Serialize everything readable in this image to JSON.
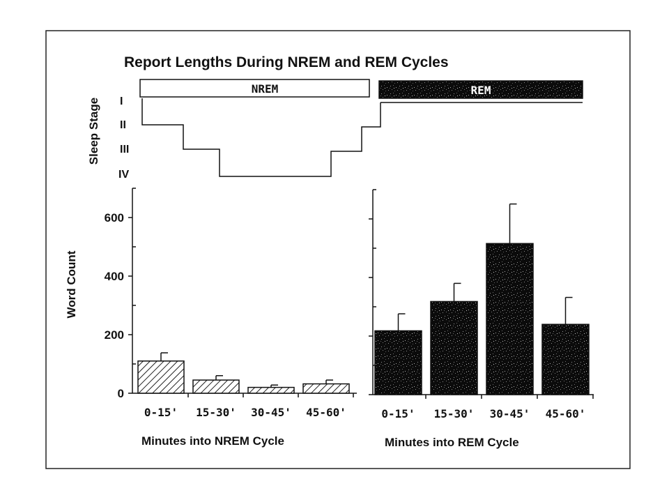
{
  "chart_data": {
    "type": "bar",
    "title": "Report Lengths During NREM and REM Cycles",
    "ylabel": "Word Count",
    "ylim": [
      0,
      700
    ],
    "yticks": [
      0,
      200,
      400,
      600
    ],
    "sleep_stage_panel": {
      "label": "Sleep Stage",
      "stages": [
        "I",
        "II",
        "III",
        "IV"
      ],
      "phases": [
        "NREM",
        "REM"
      ],
      "hypnogram_steps": [
        {
          "stage": "I"
        },
        {
          "stage": "II"
        },
        {
          "stage": "III"
        },
        {
          "stage": "IV"
        },
        {
          "stage": "III"
        },
        {
          "stage": "II"
        },
        {
          "stage": "I"
        }
      ]
    },
    "panels": [
      {
        "xlabel": "Minutes into NREM Cycle",
        "categories": [
          "0-15'",
          "15-30'",
          "30-45'",
          "45-60'"
        ],
        "values": [
          110,
          45,
          20,
          32
        ],
        "error": [
          28,
          15,
          8,
          13
        ],
        "fill": "hatched"
      },
      {
        "xlabel": "Minutes into REM Cycle",
        "categories": [
          "0-15'",
          "15-30'",
          "30-45'",
          "45-60'"
        ],
        "values": [
          218,
          318,
          516,
          240
        ],
        "error": [
          58,
          62,
          135,
          92
        ],
        "fill": "stippled-dark"
      }
    ]
  }
}
